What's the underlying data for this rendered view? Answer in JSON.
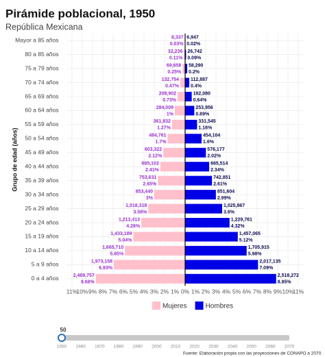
{
  "chart_data": {
    "type": "pyramid",
    "title": "Pirámide poblacional, 1950",
    "subtitle": "República Mexicana",
    "y_label": "Grupo de edad (años)",
    "categories": [
      "Mayor a 85 años",
      "80 a 85 años",
      "75 a 79 años",
      "70 a 74 años",
      "65 a 69 años",
      "60 a 64 años",
      "55 a 59 años",
      "50 a 54 años",
      "45 a 49 años",
      "40 a 44 años",
      "35 a 39 años",
      "30 a 34 años",
      "25 a 29 años",
      "20 a 24 años",
      "15 a 19 años",
      "10 a 14 años",
      "5 a 9 años",
      "0 a 4 años"
    ],
    "series": [
      {
        "name": "Mujeres",
        "side": "left",
        "color": "#ffc0cb",
        "label_color": "#9b30d0",
        "values": [
          0.03,
          0.11,
          0.25,
          0.47,
          0.73,
          1,
          1.27,
          1.7,
          2.12,
          2.41,
          2.65,
          3,
          3.58,
          4.26,
          5.04,
          5.85,
          6.93,
          8.68
        ],
        "value_labels": [
          "0.03%",
          "0.11%",
          "0.25%",
          "0.47%",
          "0.73%",
          "1%",
          "1.27%",
          "1.7%",
          "2.12%",
          "2.41%",
          "2.65%",
          "3%",
          "3.58%",
          "4.26%",
          "5.04%",
          "5.85%",
          "6.93%",
          "8.68%"
        ],
        "population": [
          8337,
          32236,
          69858,
          132754,
          208902,
          284009,
          361832,
          484761,
          603322,
          685102,
          753631,
          853440,
          1018318,
          1213413,
          1433189,
          1665710,
          1973158,
          2469757
        ],
        "population_labels": [
          "8,337",
          "32,236",
          "69,858",
          "132,754",
          "208,902",
          "284,009",
          "361,832",
          "484,761",
          "603,322",
          "685,102",
          "753,631",
          "853,440",
          "1,018,318",
          "1,213,413",
          "1,433,189",
          "1,665,710",
          "1,973,158",
          "2,469,757"
        ]
      },
      {
        "name": "Hombres",
        "side": "right",
        "color": "#0000e6",
        "label_color": "#0a0a50",
        "values": [
          0.02,
          0.09,
          0.2,
          0.4,
          0.64,
          0.89,
          1.16,
          1.6,
          2.02,
          2.34,
          2.61,
          2.99,
          3.6,
          4.32,
          5.12,
          5.98,
          7.09,
          8.85
        ],
        "value_labels": [
          "0.02%",
          "0.09%",
          "0.2%",
          "0.4%",
          "0.64%",
          "0.89%",
          "1.16%",
          "1.6%",
          "2.02%",
          "2.34%",
          "2.61%",
          "2.99%",
          "3.6%",
          "4.32%",
          "5.12%",
          "5.98%",
          "7.09%",
          "8.85%"
        ],
        "population": [
          6947,
          26742,
          58290,
          112887,
          182080,
          253956,
          331545,
          454104,
          576177,
          665514,
          742851,
          851604,
          1025867,
          1229761,
          1457065,
          1705915,
          2017135,
          2518272
        ],
        "population_labels": [
          "6,947",
          "26,742",
          "58,290",
          "112,887",
          "182,080",
          "253,956",
          "331,545",
          "454,104",
          "576,177",
          "665,514",
          "742,851",
          "851,604",
          "1,025,867",
          "1,229,761",
          "1,457,065",
          "1,705,915",
          "2,017,135",
          "2,518,272"
        ]
      }
    ],
    "xlim": [
      -11.5,
      11.5
    ],
    "xticks": [
      {
        "value": -11,
        "label": "11%"
      },
      {
        "value": -10,
        "label": "10%"
      },
      {
        "value": -9,
        "label": "9%"
      },
      {
        "value": -8,
        "label": "8%"
      },
      {
        "value": -7,
        "label": "7%"
      },
      {
        "value": -6,
        "label": "6%"
      },
      {
        "value": -5,
        "label": "5%"
      },
      {
        "value": -4,
        "label": "4%"
      },
      {
        "value": -3,
        "label": "3%"
      },
      {
        "value": -2,
        "label": "2%"
      },
      {
        "value": -1,
        "label": "1%"
      },
      {
        "value": 0,
        "label": "0%"
      },
      {
        "value": 1,
        "label": "1%"
      },
      {
        "value": 2,
        "label": "2%"
      },
      {
        "value": 3,
        "label": "3%"
      },
      {
        "value": 4,
        "label": "4%"
      },
      {
        "value": 5,
        "label": "5%"
      },
      {
        "value": 6,
        "label": "6%"
      },
      {
        "value": 7,
        "label": "7%"
      },
      {
        "value": 8,
        "label": "8%"
      },
      {
        "value": 9,
        "label": "9%"
      },
      {
        "value": 10,
        "label": "10%"
      },
      {
        "value": 11,
        "label": "11%"
      }
    ],
    "grid": true,
    "legend": "bottom",
    "slider": {
      "value": 1950,
      "label": "50",
      "ticks": [
        1950,
        1960,
        1970,
        1980,
        1990,
        2000,
        2010,
        2020,
        2030,
        2040,
        2050,
        2060,
        2070
      ]
    },
    "source": "Fuente: Elaboración propia con las proyecciones de CONAPO a 2070."
  }
}
